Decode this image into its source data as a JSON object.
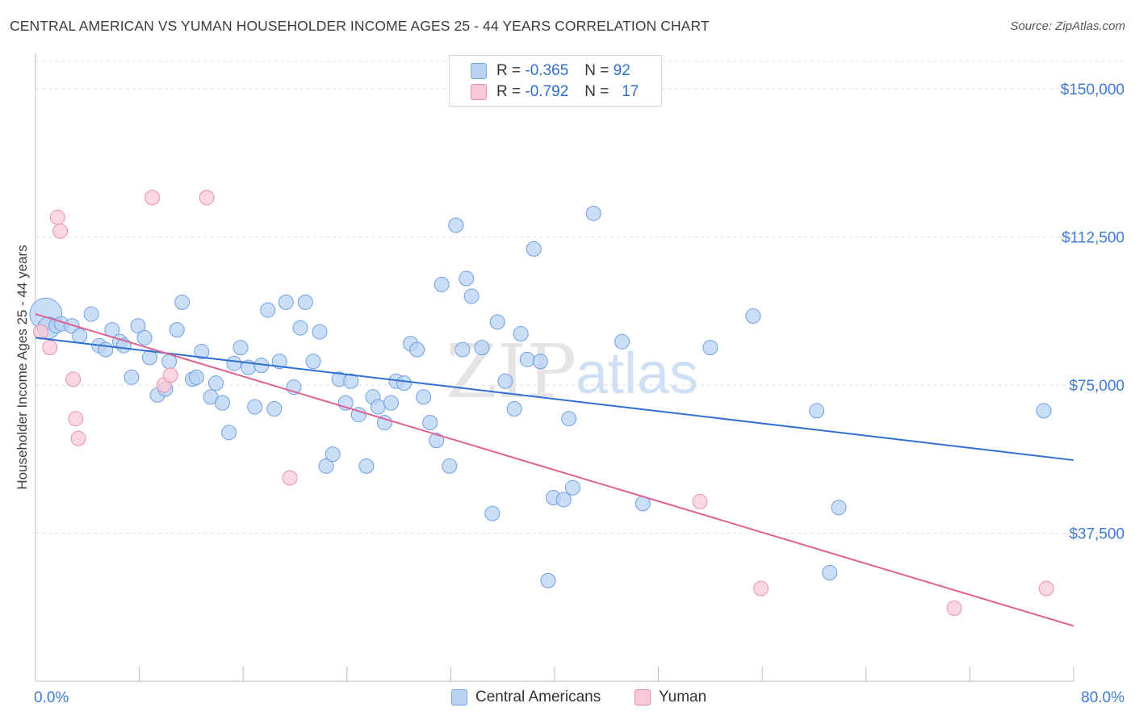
{
  "title": "CENTRAL AMERICAN VS YUMAN HOUSEHOLDER INCOME AGES 25 - 44 YEARS CORRELATION CHART",
  "source": "Source: ZipAtlas.com",
  "watermark": {
    "zip": "ZIP",
    "atlas": "atlas"
  },
  "legend": {
    "rows": [
      {
        "r_label": "R =",
        "r_value": "-0.365",
        "n_label": "N =",
        "n_value": "92"
      },
      {
        "r_label": "R =",
        "r_value": "-0.792",
        "n_label": "N =",
        "n_value": "17"
      }
    ]
  },
  "bottom_legend": [
    "Central Americans",
    "Yuman"
  ],
  "chart_data": {
    "type": "scatter",
    "title": "CENTRAL AMERICAN VS YUMAN HOUSEHOLDER INCOME AGES 25 - 44 YEARS CORRELATION CHART",
    "xlabel": "",
    "ylabel": "Householder Income Ages 25 - 44 years",
    "xlim": [
      0,
      80
    ],
    "ylim": [
      0,
      157000
    ],
    "x_tick_labels": [
      "0.0%",
      "80.0%"
    ],
    "y_ticks": [
      37500,
      75000,
      112500,
      150000
    ],
    "y_tick_labels": [
      "$37,500",
      "$75,000",
      "$112,500",
      "$150,000"
    ],
    "colors": {
      "blue": "#2f6fd1",
      "blue_fill": "#b9d3f5",
      "pink": "#e0608e",
      "pink_fill": "#f9c9d7"
    },
    "series": [
      {
        "name": "Central Americans",
        "r": -0.365,
        "n": 92,
        "trend": {
          "x": [
            0,
            80
          ],
          "y": [
            87000,
            56000
          ]
        },
        "points": [
          [
            0.8,
            93000,
            2.2
          ],
          [
            1.0,
            89500,
            1.5
          ],
          [
            1.6,
            90000,
            1
          ],
          [
            2.0,
            90500,
            1
          ],
          [
            2.8,
            90000,
            1
          ],
          [
            3.4,
            87500,
            1
          ],
          [
            4.3,
            93000,
            1
          ],
          [
            4.9,
            85000,
            1
          ],
          [
            5.4,
            84000,
            1
          ],
          [
            5.9,
            89000,
            1
          ],
          [
            6.5,
            86000,
            1
          ],
          [
            6.8,
            85000,
            1
          ],
          [
            7.4,
            77000,
            1
          ],
          [
            7.9,
            90000,
            1
          ],
          [
            8.4,
            87000,
            1
          ],
          [
            8.8,
            82000,
            1
          ],
          [
            9.4,
            72500,
            1
          ],
          [
            10.0,
            74000,
            1
          ],
          [
            10.3,
            81000,
            1
          ],
          [
            10.9,
            89000,
            1
          ],
          [
            11.3,
            96000,
            1
          ],
          [
            12.1,
            76500,
            1
          ],
          [
            12.4,
            77000,
            1
          ],
          [
            12.8,
            83500,
            1
          ],
          [
            13.5,
            72000,
            1
          ],
          [
            13.9,
            75500,
            1
          ],
          [
            14.4,
            70500,
            1
          ],
          [
            14.9,
            63000,
            1
          ],
          [
            15.3,
            80500,
            1
          ],
          [
            15.8,
            84500,
            1
          ],
          [
            16.4,
            79500,
            1
          ],
          [
            16.9,
            69500,
            1
          ],
          [
            17.4,
            80000,
            1
          ],
          [
            17.9,
            94000,
            1
          ],
          [
            18.4,
            69000,
            1
          ],
          [
            18.8,
            81000,
            1
          ],
          [
            19.3,
            96000,
            1
          ],
          [
            19.9,
            74500,
            1
          ],
          [
            20.4,
            89500,
            1
          ],
          [
            20.8,
            96000,
            1
          ],
          [
            21.4,
            81000,
            1
          ],
          [
            21.9,
            88500,
            1
          ],
          [
            22.4,
            54500,
            1
          ],
          [
            22.9,
            57500,
            1
          ],
          [
            23.4,
            76500,
            1
          ],
          [
            23.9,
            70500,
            1
          ],
          [
            24.3,
            76000,
            1
          ],
          [
            24.9,
            67500,
            1
          ],
          [
            25.5,
            54500,
            1
          ],
          [
            26.0,
            72000,
            1
          ],
          [
            26.4,
            69500,
            1
          ],
          [
            26.9,
            65500,
            1
          ],
          [
            27.4,
            70500,
            1
          ],
          [
            27.8,
            76000,
            1
          ],
          [
            28.4,
            75500,
            1
          ],
          [
            28.9,
            85500,
            1
          ],
          [
            29.4,
            84000,
            1
          ],
          [
            29.9,
            72000,
            1
          ],
          [
            30.4,
            65500,
            1
          ],
          [
            30.9,
            61000,
            1
          ],
          [
            31.3,
            100500,
            1
          ],
          [
            31.9,
            54500,
            1
          ],
          [
            32.4,
            115500,
            1
          ],
          [
            32.9,
            84000,
            1
          ],
          [
            33.2,
            102000,
            1
          ],
          [
            33.6,
            97500,
            1
          ],
          [
            34.4,
            84500,
            1
          ],
          [
            35.2,
            42500,
            1
          ],
          [
            35.6,
            91000,
            1
          ],
          [
            36.2,
            76000,
            1
          ],
          [
            36.9,
            69000,
            1
          ],
          [
            37.4,
            88000,
            1
          ],
          [
            37.9,
            81500,
            1
          ],
          [
            38.4,
            109500,
            1
          ],
          [
            38.9,
            81000,
            1
          ],
          [
            39.5,
            25500,
            1
          ],
          [
            39.9,
            46500,
            1
          ],
          [
            40.7,
            46000,
            1
          ],
          [
            41.1,
            66500,
            1
          ],
          [
            41.4,
            49000,
            1
          ],
          [
            43.0,
            118500,
            1
          ],
          [
            45.2,
            86000,
            1
          ],
          [
            46.8,
            45000,
            1
          ],
          [
            52.0,
            84500,
            1
          ],
          [
            55.3,
            92500,
            1
          ],
          [
            60.2,
            68500,
            1
          ],
          [
            61.2,
            27500,
            1
          ],
          [
            61.9,
            44000,
            1
          ],
          [
            77.7,
            68500,
            1
          ]
        ]
      },
      {
        "name": "Yuman",
        "r": -0.792,
        "n": 17,
        "trend": {
          "x": [
            0,
            80
          ],
          "y": [
            93000,
            14000
          ]
        },
        "points": [
          [
            0.4,
            88500,
            1
          ],
          [
            1.1,
            84500,
            1
          ],
          [
            1.7,
            117500,
            1
          ],
          [
            1.9,
            114000,
            1
          ],
          [
            2.9,
            76500,
            1
          ],
          [
            3.1,
            66500,
            1
          ],
          [
            3.3,
            61500,
            1
          ],
          [
            9.0,
            122500,
            1
          ],
          [
            9.9,
            75000,
            1
          ],
          [
            10.4,
            77500,
            1
          ],
          [
            13.2,
            122500,
            1
          ],
          [
            19.6,
            51500,
            1
          ],
          [
            51.2,
            45500,
            1
          ],
          [
            55.9,
            23500,
            1
          ],
          [
            70.8,
            18500,
            1
          ],
          [
            77.9,
            23500,
            1
          ]
        ]
      }
    ]
  }
}
